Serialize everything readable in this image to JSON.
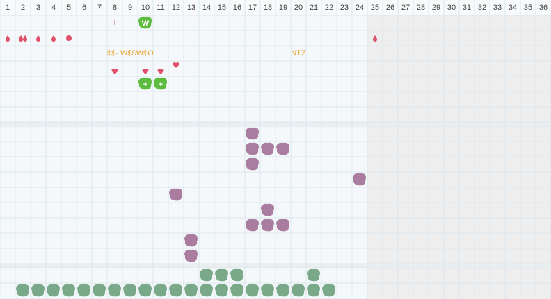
{
  "columns": [
    1,
    2,
    3,
    4,
    5,
    6,
    7,
    8,
    9,
    10,
    11,
    12,
    13,
    14,
    15,
    16,
    17,
    18,
    19,
    20,
    21,
    22,
    23,
    24,
    25,
    26,
    27,
    28,
    29,
    30,
    31,
    32,
    33,
    34,
    35,
    36
  ],
  "labels": {
    "marker": "I",
    "badge": "W",
    "code": "$$- W$$W$O",
    "tag": "NTZ",
    "plus": [
      "+",
      "+"
    ]
  }
}
